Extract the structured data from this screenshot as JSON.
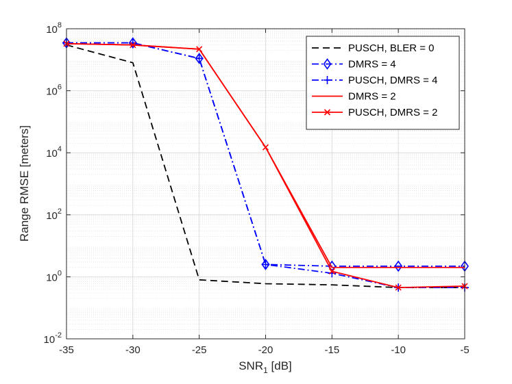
{
  "chart_data": {
    "type": "line",
    "title": "",
    "xlabel": "SNR",
    "xlabel_subscript": "1",
    "xlabel_unit": " [dB]",
    "ylabel": "Range RMSE [meters]",
    "xscale": "linear",
    "yscale": "log",
    "xlim": [
      -35,
      -5
    ],
    "ylim": [
      0.01,
      100000000
    ],
    "x_ticks": [
      -35,
      -30,
      -25,
      -20,
      -15,
      -10,
      -5
    ],
    "x_tick_labels": [
      "-35",
      "-30",
      "-25",
      "-20",
      "-15",
      "-10",
      "-5"
    ],
    "y_ticks": [
      0.01,
      1,
      100,
      10000,
      1000000,
      100000000
    ],
    "y_tick_base": "10",
    "y_tick_exponents": [
      "-2",
      "0",
      "2",
      "4",
      "6",
      "8"
    ],
    "grid": true,
    "minor_grid": true,
    "legend_position": "top-right",
    "x": [
      -35,
      -30,
      -25,
      -20,
      -15,
      -10,
      -5
    ],
    "series": [
      {
        "name": "PUSCH, BLER = 0",
        "color": "#000000",
        "dash": "dashed",
        "marker": "none",
        "values": [
          30000000,
          8000000,
          0.8,
          0.6,
          0.55,
          0.45,
          0.45
        ]
      },
      {
        "name": "DMRS = 4",
        "color": "#0000ff",
        "dash": "dashdot",
        "marker": "diamond",
        "values": [
          35000000,
          35000000,
          11000000,
          2.5,
          2.2,
          2.2,
          2.2
        ]
      },
      {
        "name": "PUSCH, DMRS = 4",
        "color": "#0000ff",
        "dash": "dashdot",
        "marker": "plus",
        "values": [
          35000000,
          35000000,
          11000000,
          2.5,
          1.3,
          0.45,
          0.45
        ]
      },
      {
        "name": "DMRS = 2",
        "color": "#ff0000",
        "dash": "solid",
        "marker": "none",
        "values": [
          33000000,
          30000000,
          22000000,
          15000,
          2.0,
          2.0,
          2.0
        ]
      },
      {
        "name": "PUSCH, DMRS = 2",
        "color": "#ff0000",
        "dash": "solid",
        "marker": "x",
        "values": [
          33000000,
          30000000,
          22000000,
          15000,
          1.5,
          0.45,
          0.5
        ]
      }
    ]
  }
}
